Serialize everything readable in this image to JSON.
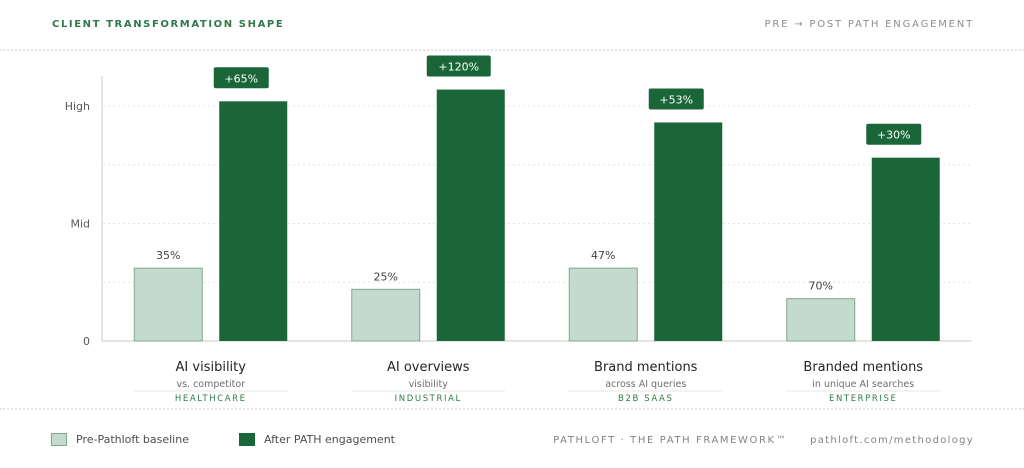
{
  "header": {
    "title": "CLIENT TRANSFORMATION SHAPE",
    "subtitle": "PRE → POST PATH ENGAGEMENT"
  },
  "colors": {
    "pre_fill": "#c5dace",
    "pre_stroke": "#7fa98e",
    "post_fill": "#1b6638",
    "badge": "#1b6638",
    "title_green": "#2f7a4a"
  },
  "chart_data": {
    "type": "bar",
    "title": "CLIENT TRANSFORMATION SHAPE",
    "subtitle": "PRE → POST PATH ENGAGEMENT",
    "y_ticks": [
      "0",
      "Mid",
      "High"
    ],
    "ylim": [
      0,
      100
    ],
    "grid": true,
    "legend": "bottom-left",
    "groups": [
      {
        "category": "AI visibility",
        "detail": "vs. competitor",
        "sector": "HEALTHCARE",
        "pre": 31,
        "post": 102,
        "pre_label": "35%",
        "change_label": "+65%"
      },
      {
        "category": "AI overviews",
        "detail": "visibility",
        "sector": "INDUSTRIAL",
        "pre": 22,
        "post": 107,
        "pre_label": "25%",
        "change_label": "+120%"
      },
      {
        "category": "Brand mentions",
        "detail": "across AI queries",
        "sector": "B2B SAAS",
        "pre": 31,
        "post": 93,
        "pre_label": "47%",
        "change_label": "+53%"
      },
      {
        "category": "Branded mentions",
        "detail": "in unique AI searches",
        "sector": "ENTERPRISE",
        "pre": 18,
        "post": 78,
        "pre_label": "70%",
        "change_label": "+30%"
      }
    ],
    "series": [
      {
        "name": "Pre-Pathloft baseline"
      },
      {
        "name": "After PATH engagement"
      }
    ]
  },
  "footer": {
    "legend_pre": "Pre-Pathloft baseline",
    "legend_post": "After PATH engagement",
    "brand": "PATHLOFT · THE PATH FRAMEWORK™",
    "url": "pathloft.com/methodology"
  }
}
